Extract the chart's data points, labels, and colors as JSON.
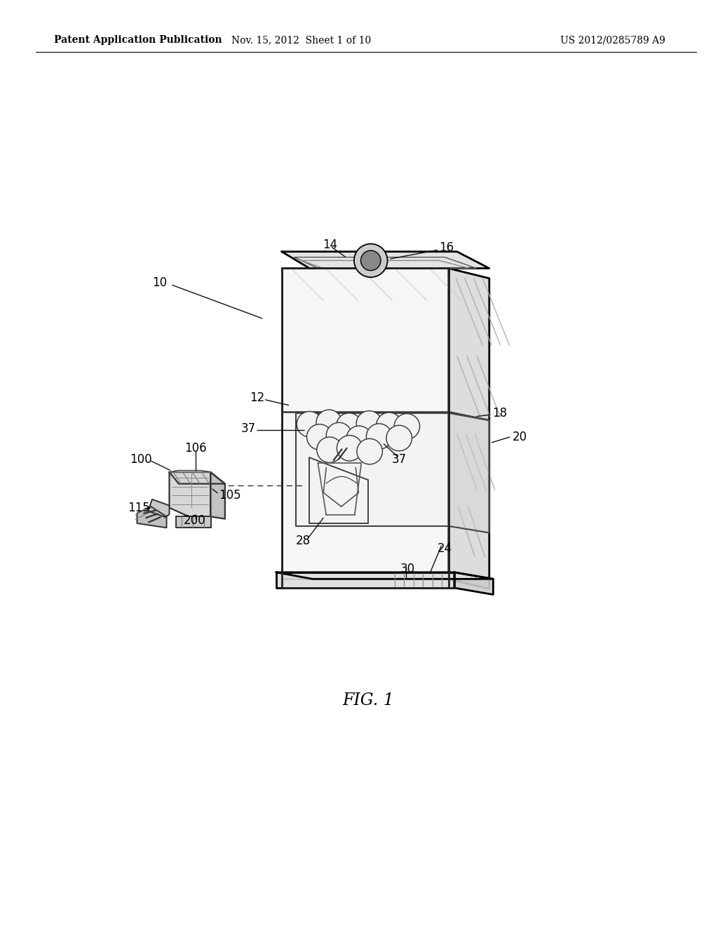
{
  "bg_color": "#ffffff",
  "title_left": "Patent Application Publication",
  "title_center": "Nov. 15, 2012  Sheet 1 of 10",
  "title_right": "US 2012/0285789 A9",
  "fig_label": "FIG. 1"
}
